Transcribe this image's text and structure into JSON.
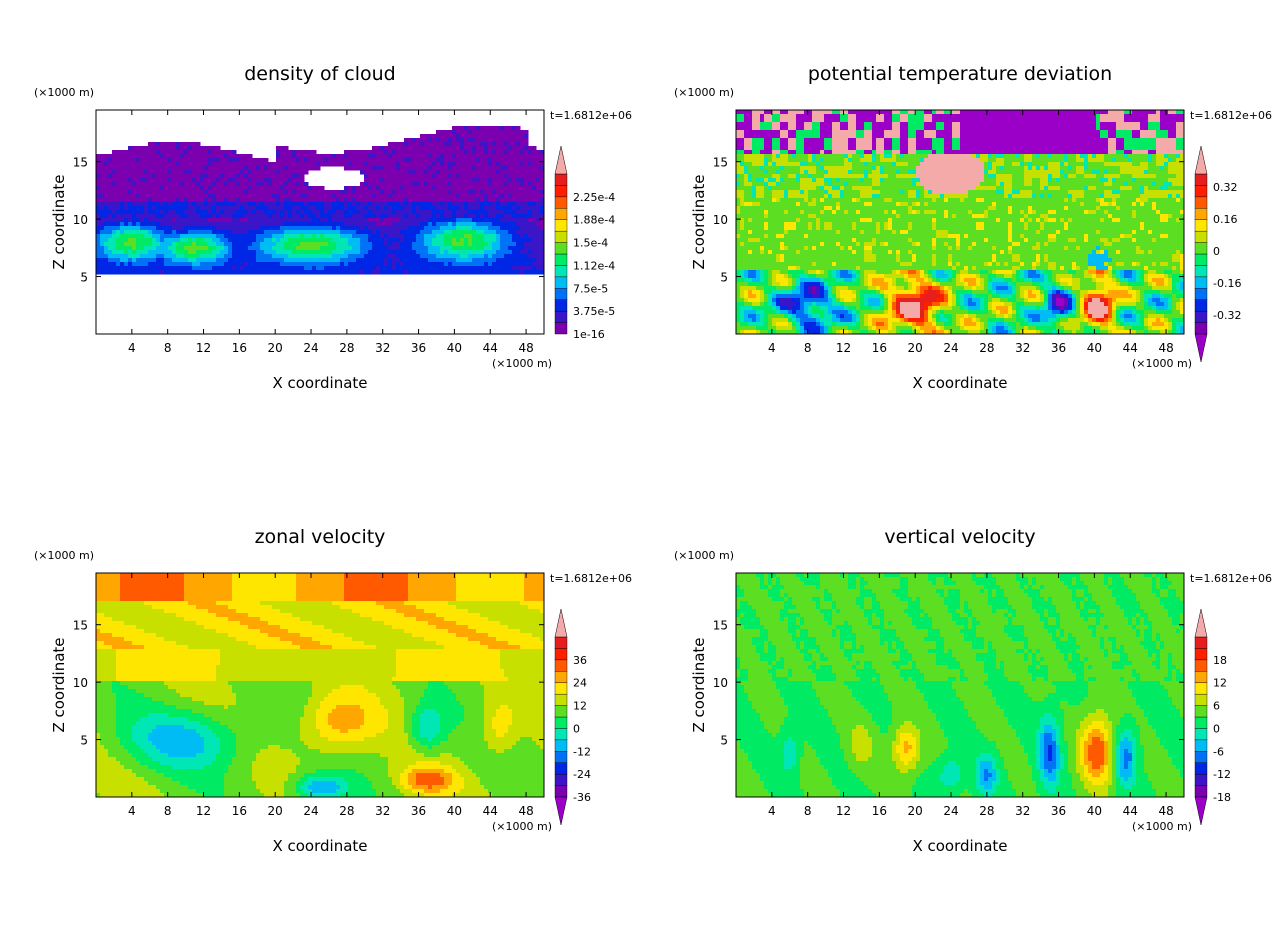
{
  "colors": {
    "palette": [
      "#7a00b0",
      "#3a16c8",
      "#0026e6",
      "#0072f5",
      "#00bcf5",
      "#00e6b4",
      "#00eb63",
      "#5cde23",
      "#c8e000",
      "#ffe600",
      "#ffa600",
      "#ff5a00",
      "#ff1e00",
      "#e61e1e"
    ],
    "over": "#f5aaaa",
    "under": "#9a00c8",
    "background": "#ffffff"
  },
  "chart_data": [
    {
      "type": "heatmap",
      "title": "density of cloud",
      "xlabel": "X coordinate",
      "ylabel": "Z coordinate",
      "x_unit": "(×1000 m)",
      "y_unit": "(×1000 m)",
      "time_label": "t=1.6812e+06",
      "xlim": [
        0,
        50
      ],
      "ylim": [
        0,
        19.5
      ],
      "xticks": [
        "4",
        "8",
        "12",
        "16",
        "20",
        "24",
        "28",
        "32",
        "36",
        "40",
        "44",
        "48"
      ],
      "yticks": [
        "5",
        "10",
        "15"
      ],
      "colorbar": {
        "labels": [
          "1e-16",
          "3.75e-5",
          "7.5e-5",
          "1.12e-4",
          "1.5e-4",
          "1.88e-4",
          "2.25e-4"
        ],
        "arrow_top": true,
        "arrow_bottom": false
      },
      "field": "cloud",
      "description": ""
    },
    {
      "type": "heatmap",
      "title": "potential temperature deviation",
      "xlabel": "X coordinate",
      "ylabel": "Z coordinate",
      "x_unit": "(×1000 m)",
      "y_unit": "(×1000 m)",
      "time_label": "t=1.6812e+06",
      "xlim": [
        0,
        50
      ],
      "ylim": [
        0,
        19.5
      ],
      "xticks": [
        "4",
        "8",
        "12",
        "16",
        "20",
        "24",
        "28",
        "32",
        "36",
        "40",
        "44",
        "48"
      ],
      "yticks": [
        "5",
        "10",
        "15"
      ],
      "colorbar": {
        "labels": [
          "-0.32",
          "-0.16",
          "0",
          "0.16",
          "0.32"
        ],
        "arrow_top": true,
        "arrow_bottom": true
      },
      "field": "theta"
    },
    {
      "type": "heatmap",
      "title": "zonal velocity",
      "xlabel": "X coordinate",
      "ylabel": "Z coordinate",
      "x_unit": "(×1000 m)",
      "y_unit": "(×1000 m)",
      "time_label": "t=1.6812e+06",
      "xlim": [
        0,
        50
      ],
      "ylim": [
        0,
        19.5
      ],
      "xticks": [
        "4",
        "8",
        "12",
        "16",
        "20",
        "24",
        "28",
        "32",
        "36",
        "40",
        "44",
        "48"
      ],
      "yticks": [
        "5",
        "10",
        "15"
      ],
      "colorbar": {
        "labels": [
          "-36",
          "-24",
          "-12",
          "0",
          "12",
          "24",
          "36"
        ],
        "arrow_top": true,
        "arrow_bottom": true
      },
      "field": "uvel"
    },
    {
      "type": "heatmap",
      "title": "vertical velocity",
      "xlabel": "X coordinate",
      "ylabel": "Z coordinate",
      "x_unit": "(×1000 m)",
      "y_unit": "(×1000 m)",
      "time_label": "t=1.6812e+06",
      "xlim": [
        0,
        50
      ],
      "ylim": [
        0,
        19.5
      ],
      "xticks": [
        "4",
        "8",
        "12",
        "16",
        "20",
        "24",
        "28",
        "32",
        "36",
        "40",
        "44",
        "48"
      ],
      "yticks": [
        "5",
        "10",
        "15"
      ],
      "colorbar": {
        "labels": [
          "-18",
          "-12",
          "-6",
          "0",
          "6",
          "12",
          "18"
        ],
        "arrow_top": true,
        "arrow_bottom": true
      },
      "field": "wvel"
    }
  ]
}
